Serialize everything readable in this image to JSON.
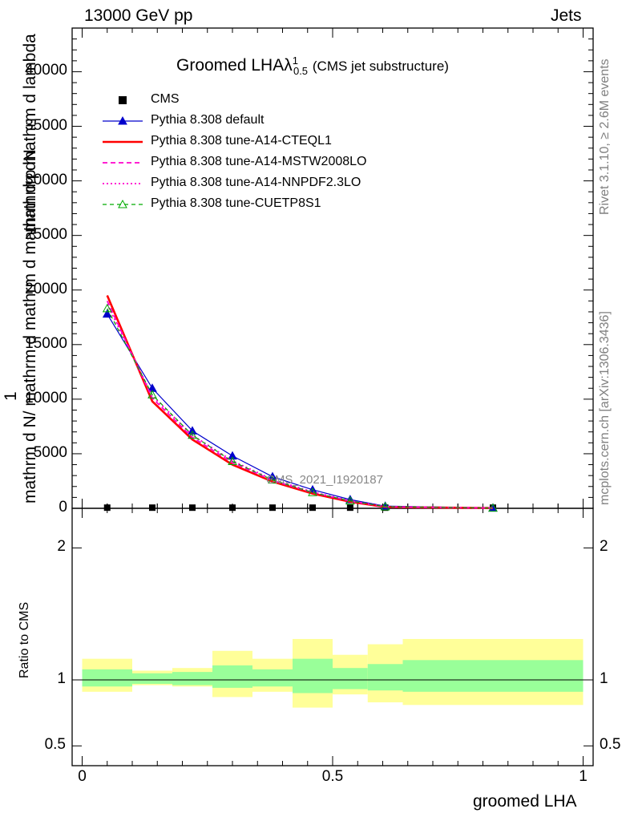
{
  "header": {
    "left": "13000 GeV pp",
    "right": "Jets"
  },
  "side": {
    "rivet": "Rivet 3.1.10, ≥ 2.6M events",
    "mcplots": "mcplots.cern.ch [arXiv:1306.3436]"
  },
  "watermark": "CMS_2021_I1920187",
  "chart_data": {
    "type": "line",
    "title": "Groomed LHAλ",
    "title_sub": "0.5",
    "title_sup": "1",
    "title_suffix": "(CMS jet substructure)",
    "xlabel": "groomed LHA",
    "ylabel_main": "1 / mathrm d N / mathrm d p mathrm d lambda · mathrm d^2 N / mathrm d p mathrm d lambda",
    "ylabel_main_lines": [
      "1",
      "mathrm dN",
      "mathrm d N/ mathrm d mathrm d mathrm d mathrm d lambda"
    ],
    "ylabel_ratio": "Ratio to CMS",
    "xlim": [
      -0.02,
      1.02
    ],
    "ylim_main": [
      0,
      44000
    ],
    "ylim_ratio": [
      0.35,
      2.3
    ],
    "xticks": [
      "0",
      "0.5",
      "1"
    ],
    "yticks_main": [
      "0",
      "5000",
      "10000",
      "15000",
      "20000",
      "25000",
      "30000",
      "35000",
      "40000"
    ],
    "yticks_ratio": [
      "0.5",
      "1",
      "2"
    ],
    "x": [
      0.05,
      0.14,
      0.22,
      0.3,
      0.38,
      0.46,
      0.535,
      0.605,
      0.82
    ],
    "cms": [
      60,
      60,
      60,
      60,
      60,
      60,
      60,
      60,
      60
    ],
    "series": [
      {
        "name": "CMS",
        "color": "#000000",
        "style": "marker",
        "values": [
          60,
          60,
          60,
          60,
          60,
          60,
          60,
          60,
          60
        ]
      },
      {
        "name": "Pythia 8.308 default",
        "color": "#0000cc",
        "style": "solid-triangle",
        "values": [
          17800,
          11000,
          7100,
          4800,
          2900,
          1700,
          800,
          200,
          30
        ]
      },
      {
        "name": "Pythia 8.308 tune-A14-CTEQL1",
        "color": "#ff0000",
        "style": "thick",
        "values": [
          19500,
          9800,
          6300,
          4000,
          2450,
          1350,
          600,
          120,
          20
        ]
      },
      {
        "name": "Pythia 8.308 tune-A14-MSTW2008LO",
        "color": "#ff00cc",
        "style": "dashed",
        "values": [
          19000,
          10100,
          6500,
          4200,
          2550,
          1450,
          660,
          140,
          22
        ]
      },
      {
        "name": "Pythia 8.308 tune-A14-NNPDF2.3LO",
        "color": "#ff00cc",
        "style": "dotted",
        "values": [
          18700,
          10300,
          6700,
          4350,
          2650,
          1500,
          700,
          150,
          24
        ]
      },
      {
        "name": "Pythia 8.308 tune-CUETP8S1",
        "color": "#00aa00",
        "style": "dashed-open-triangle",
        "values": [
          18300,
          10400,
          6700,
          4300,
          2600,
          1450,
          680,
          150,
          24
        ]
      }
    ],
    "ratio_bins": [
      {
        "x0": 0.0,
        "x1": 0.1,
        "inner": [
          0.95,
          1.08
        ],
        "outer": [
          0.91,
          1.16
        ]
      },
      {
        "x0": 0.1,
        "x1": 0.18,
        "inner": [
          0.97,
          1.05
        ],
        "outer": [
          0.96,
          1.07
        ]
      },
      {
        "x0": 0.18,
        "x1": 0.26,
        "inner": [
          0.96,
          1.06
        ],
        "outer": [
          0.95,
          1.09
        ]
      },
      {
        "x0": 0.26,
        "x1": 0.34,
        "inner": [
          0.94,
          1.11
        ],
        "outer": [
          0.87,
          1.22
        ]
      },
      {
        "x0": 0.34,
        "x1": 0.42,
        "inner": [
          0.95,
          1.08
        ],
        "outer": [
          0.91,
          1.16
        ]
      },
      {
        "x0": 0.42,
        "x1": 0.5,
        "inner": [
          0.9,
          1.16
        ],
        "outer": [
          0.79,
          1.31
        ]
      },
      {
        "x0": 0.5,
        "x1": 0.57,
        "inner": [
          0.93,
          1.09
        ],
        "outer": [
          0.89,
          1.19
        ]
      },
      {
        "x0": 0.57,
        "x1": 0.64,
        "inner": [
          0.92,
          1.12
        ],
        "outer": [
          0.83,
          1.27
        ]
      },
      {
        "x0": 0.64,
        "x1": 1.0,
        "inner": [
          0.91,
          1.15
        ],
        "outer": [
          0.81,
          1.31
        ]
      }
    ],
    "band_colors": {
      "inner": "#99ff99",
      "outer": "#ffff99"
    }
  }
}
